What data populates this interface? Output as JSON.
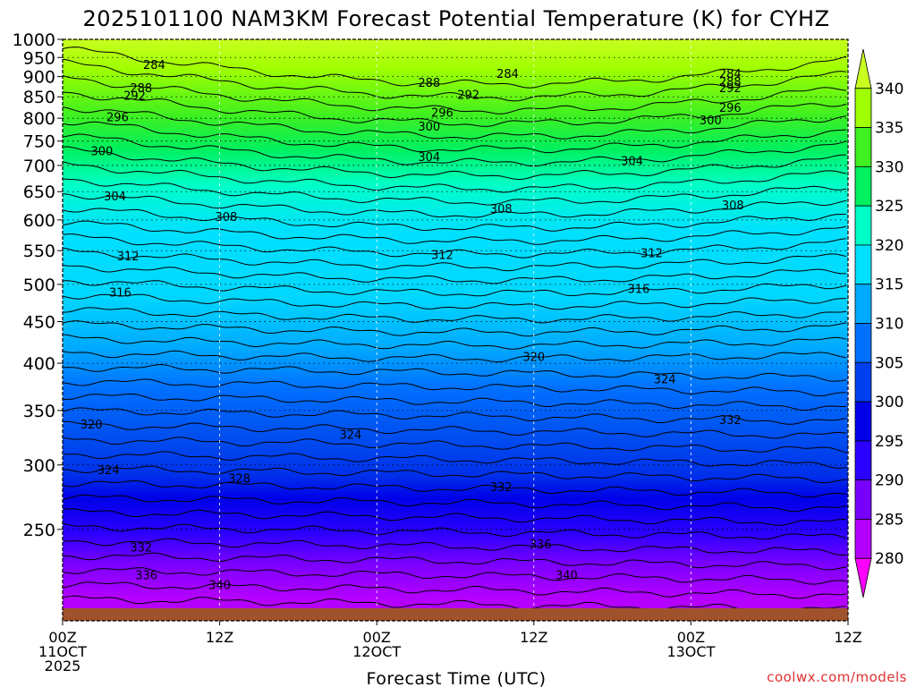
{
  "chart_data": {
    "type": "heatmap",
    "title": "2025101100 NAM3KM Forecast Potential Temperature (K) for CYHZ",
    "xlabel": "Forecast Time (UTC)",
    "ylabel": "",
    "credit": "coolwx.com/models",
    "x_ticks": [
      {
        "hour": 0,
        "line1": "00Z",
        "line2": "11OCT",
        "line3": "2025"
      },
      {
        "hour": 12,
        "line1": "12Z",
        "line2": "",
        "line3": ""
      },
      {
        "hour": 24,
        "line1": "00Z",
        "line2": "12OCT",
        "line3": ""
      },
      {
        "hour": 36,
        "line1": "12Z",
        "line2": "",
        "line3": ""
      },
      {
        "hour": 48,
        "line1": "00Z",
        "line2": "13OCT",
        "line3": ""
      },
      {
        "hour": 60,
        "line1": "12Z",
        "line2": "",
        "line3": ""
      }
    ],
    "xlim": [
      0,
      60
    ],
    "y_ticks": [
      250,
      300,
      350,
      400,
      450,
      500,
      550,
      600,
      650,
      700,
      750,
      800,
      850,
      900,
      950,
      1000
    ],
    "ylim": [
      1000,
      200
    ],
    "colorbar": {
      "levels": [
        280,
        285,
        290,
        295,
        300,
        305,
        310,
        315,
        320,
        325,
        330,
        335,
        340
      ],
      "labels": [
        "280",
        "285",
        "290",
        "295",
        "300",
        "305",
        "310",
        "315",
        "320",
        "325",
        "330",
        "335",
        "340"
      ],
      "colors": [
        "#ff00ff",
        "#b400ff",
        "#7800ff",
        "#2c00ff",
        "#0000e8",
        "#0040f0",
        "#0070ff",
        "#00aaff",
        "#00e0ff",
        "#00ffc8",
        "#00f060",
        "#40f020",
        "#a0ff00",
        "#c8ff20"
      ]
    },
    "contour_labels": [
      {
        "text": "340",
        "hour": 12.0,
        "p": 214
      },
      {
        "text": "340",
        "hour": 38.5,
        "p": 220
      },
      {
        "text": "336",
        "hour": 6.4,
        "p": 220
      },
      {
        "text": "336",
        "hour": 36.5,
        "p": 240
      },
      {
        "text": "332",
        "hour": 6.0,
        "p": 238
      },
      {
        "text": "332",
        "hour": 33.5,
        "p": 282
      },
      {
        "text": "332",
        "hour": 51.0,
        "p": 341
      },
      {
        "text": "328",
        "hour": 13.5,
        "p": 289
      },
      {
        "text": "324",
        "hour": 3.5,
        "p": 296
      },
      {
        "text": "324",
        "hour": 22.0,
        "p": 327
      },
      {
        "text": "324",
        "hour": 46.0,
        "p": 383
      },
      {
        "text": "320",
        "hour": 2.2,
        "p": 337
      },
      {
        "text": "320",
        "hour": 36.0,
        "p": 408
      },
      {
        "text": "316",
        "hour": 4.4,
        "p": 489
      },
      {
        "text": "316",
        "hour": 44.0,
        "p": 494
      },
      {
        "text": "312",
        "hour": 5.0,
        "p": 542
      },
      {
        "text": "312",
        "hour": 29.0,
        "p": 544
      },
      {
        "text": "312",
        "hour": 45.0,
        "p": 547
      },
      {
        "text": "308",
        "hour": 12.5,
        "p": 606
      },
      {
        "text": "308",
        "hour": 33.5,
        "p": 620
      },
      {
        "text": "308",
        "hour": 51.2,
        "p": 626
      },
      {
        "text": "304",
        "hour": 4.0,
        "p": 642
      },
      {
        "text": "304",
        "hour": 28.0,
        "p": 718
      },
      {
        "text": "304",
        "hour": 43.5,
        "p": 710
      },
      {
        "text": "300",
        "hour": 3.0,
        "p": 730
      },
      {
        "text": "300",
        "hour": 28.0,
        "p": 782
      },
      {
        "text": "300",
        "hour": 49.5,
        "p": 796
      },
      {
        "text": "296",
        "hour": 4.2,
        "p": 803
      },
      {
        "text": "296",
        "hour": 29.0,
        "p": 814
      },
      {
        "text": "296",
        "hour": 51.0,
        "p": 825
      },
      {
        "text": "292",
        "hour": 5.5,
        "p": 854
      },
      {
        "text": "292",
        "hour": 31.0,
        "p": 856
      },
      {
        "text": "292",
        "hour": 51.0,
        "p": 872
      },
      {
        "text": "288",
        "hour": 6.0,
        "p": 872
      },
      {
        "text": "288",
        "hour": 28.0,
        "p": 886
      },
      {
        "text": "288",
        "hour": 51.0,
        "p": 888
      },
      {
        "text": "284",
        "hour": 7.0,
        "p": 932
      },
      {
        "text": "284",
        "hour": 34.0,
        "p": 908
      },
      {
        "text": "284",
        "hour": 51.0,
        "p": 908
      }
    ]
  }
}
